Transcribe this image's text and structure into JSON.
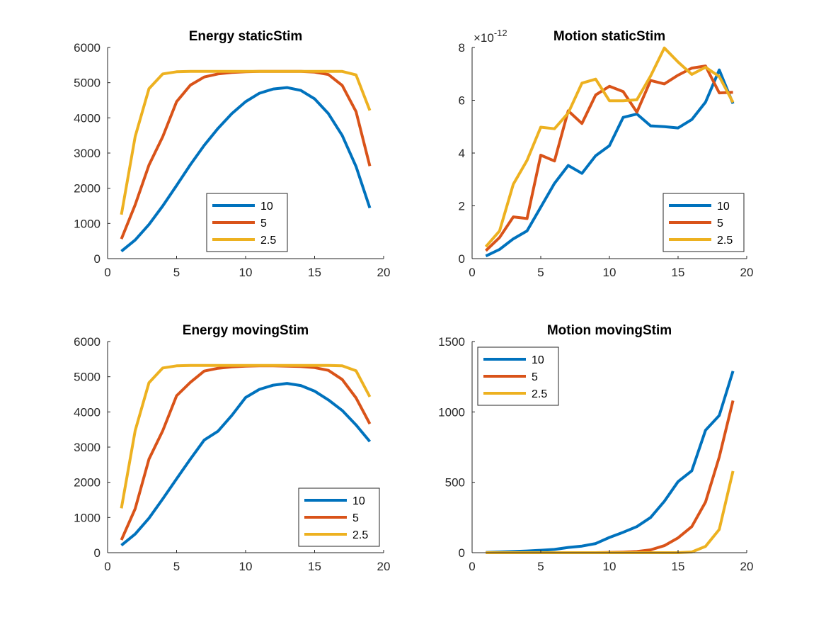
{
  "chart_data": [
    {
      "type": "line",
      "title": "Energy staticStim",
      "xlim": [
        0,
        20
      ],
      "ylim": [
        0,
        6000
      ],
      "xticks": [
        0,
        5,
        10,
        15,
        20
      ],
      "yticks": [
        0,
        1000,
        2000,
        3000,
        4000,
        5000,
        6000
      ],
      "legend_placement": "bottom-center",
      "series": [
        {
          "name": "10",
          "color": "#0072BD",
          "x": [
            1,
            2,
            3,
            4,
            5,
            6,
            7,
            8,
            9,
            10,
            11,
            12,
            13,
            14,
            15,
            16,
            17,
            18,
            19
          ],
          "y": [
            210,
            530,
            970,
            1500,
            2080,
            2670,
            3220,
            3700,
            4120,
            4460,
            4700,
            4820,
            4860,
            4780,
            4540,
            4120,
            3500,
            2620,
            1440
          ]
        },
        {
          "name": "5",
          "color": "#D95319",
          "x": [
            1,
            2,
            3,
            4,
            5,
            6,
            7,
            8,
            9,
            10,
            11,
            12,
            13,
            14,
            15,
            16,
            17,
            18,
            19
          ],
          "y": [
            560,
            1530,
            2660,
            3470,
            4460,
            4930,
            5160,
            5250,
            5290,
            5310,
            5320,
            5320,
            5320,
            5320,
            5300,
            5230,
            4920,
            4180,
            2630
          ]
        },
        {
          "name": "2.5",
          "color": "#EDB120",
          "x": [
            1,
            2,
            3,
            4,
            5,
            6,
            7,
            8,
            9,
            10,
            11,
            12,
            13,
            14,
            15,
            16,
            17,
            18,
            19
          ],
          "y": [
            1250,
            3470,
            4830,
            5250,
            5310,
            5320,
            5320,
            5320,
            5320,
            5320,
            5320,
            5320,
            5320,
            5320,
            5320,
            5320,
            5320,
            5220,
            4210
          ]
        }
      ]
    },
    {
      "type": "line",
      "title": "Motion staticStim",
      "y_exponent_base": "×10",
      "y_exponent_power": "-12",
      "xlim": [
        0,
        20
      ],
      "ylim": [
        0,
        8
      ],
      "xticks": [
        0,
        5,
        10,
        15,
        20
      ],
      "yticks": [
        0,
        2,
        4,
        6,
        8
      ],
      "legend_placement": "bottom-right",
      "series": [
        {
          "name": "10",
          "color": "#0072BD",
          "x": [
            1,
            2,
            3,
            4,
            5,
            6,
            7,
            8,
            9,
            10,
            11,
            12,
            13,
            14,
            15,
            16,
            17,
            18,
            19
          ],
          "y": [
            0.1,
            0.35,
            0.75,
            1.05,
            1.95,
            2.85,
            3.53,
            3.23,
            3.9,
            4.28,
            5.35,
            5.48,
            5.03,
            5.0,
            4.95,
            5.27,
            5.93,
            7.15,
            5.87
          ]
        },
        {
          "name": "5",
          "color": "#D95319",
          "x": [
            1,
            2,
            3,
            4,
            5,
            6,
            7,
            8,
            9,
            10,
            11,
            12,
            13,
            14,
            15,
            16,
            17,
            18,
            19
          ],
          "y": [
            0.3,
            0.8,
            1.58,
            1.52,
            3.92,
            3.7,
            5.6,
            5.12,
            6.2,
            6.53,
            6.33,
            5.55,
            6.75,
            6.62,
            6.95,
            7.22,
            7.3,
            6.28,
            6.3
          ]
        },
        {
          "name": "2.5",
          "color": "#EDB120",
          "x": [
            1,
            2,
            3,
            4,
            5,
            6,
            7,
            8,
            9,
            10,
            11,
            12,
            13,
            14,
            15,
            16,
            17,
            18,
            19
          ],
          "y": [
            0.45,
            1.05,
            2.82,
            3.72,
            4.98,
            4.92,
            5.52,
            6.65,
            6.8,
            5.98,
            5.98,
            6.02,
            6.92,
            7.98,
            7.45,
            6.98,
            7.25,
            6.9,
            5.92
          ]
        }
      ]
    },
    {
      "type": "line",
      "title": "Energy movingStim",
      "xlim": [
        0,
        20
      ],
      "ylim": [
        0,
        6000
      ],
      "xticks": [
        0,
        5,
        10,
        15,
        20
      ],
      "yticks": [
        0,
        1000,
        2000,
        3000,
        4000,
        5000,
        6000
      ],
      "legend_placement": "bottom-right",
      "series": [
        {
          "name": "10",
          "color": "#0072BD",
          "x": [
            1,
            2,
            3,
            4,
            5,
            6,
            7,
            8,
            9,
            10,
            11,
            12,
            13,
            14,
            15,
            16,
            17,
            18,
            19
          ],
          "y": [
            210,
            530,
            980,
            1530,
            2100,
            2660,
            3200,
            3450,
            3900,
            4410,
            4640,
            4760,
            4810,
            4750,
            4590,
            4340,
            4040,
            3630,
            3160
          ]
        },
        {
          "name": "5",
          "color": "#D95319",
          "x": [
            1,
            2,
            3,
            4,
            5,
            6,
            7,
            8,
            9,
            10,
            11,
            12,
            13,
            14,
            15,
            16,
            17,
            18,
            19
          ],
          "y": [
            360,
            1250,
            2660,
            3470,
            4460,
            4840,
            5160,
            5240,
            5280,
            5300,
            5310,
            5310,
            5300,
            5290,
            5260,
            5180,
            4920,
            4400,
            3660
          ]
        },
        {
          "name": "2.5",
          "color": "#EDB120",
          "x": [
            1,
            2,
            3,
            4,
            5,
            6,
            7,
            8,
            9,
            10,
            11,
            12,
            13,
            14,
            15,
            16,
            17,
            18,
            19
          ],
          "y": [
            1260,
            3470,
            4830,
            5250,
            5310,
            5320,
            5320,
            5320,
            5320,
            5320,
            5320,
            5320,
            5320,
            5320,
            5320,
            5320,
            5310,
            5170,
            4430
          ]
        }
      ]
    },
    {
      "type": "line",
      "title": "Motion movingStim",
      "xlim": [
        0,
        20
      ],
      "ylim": [
        0,
        1500
      ],
      "xticks": [
        0,
        5,
        10,
        15,
        20
      ],
      "yticks": [
        0,
        500,
        1000,
        1500
      ],
      "legend_placement": "top-left",
      "series": [
        {
          "name": "10",
          "color": "#0072BD",
          "x": [
            1,
            2,
            3,
            4,
            5,
            6,
            7,
            8,
            9,
            10,
            11,
            12,
            13,
            14,
            15,
            16,
            17,
            18,
            19
          ],
          "y": [
            2,
            5,
            8,
            12,
            17,
            23,
            37,
            47,
            65,
            108,
            145,
            185,
            250,
            365,
            505,
            582,
            870,
            975,
            1290
          ]
        },
        {
          "name": "5",
          "color": "#D95319",
          "x": [
            1,
            2,
            3,
            4,
            5,
            6,
            7,
            8,
            9,
            10,
            11,
            12,
            13,
            14,
            15,
            16,
            17,
            18,
            19
          ],
          "y": [
            0,
            0,
            0,
            0,
            0,
            0,
            0,
            0,
            0,
            2,
            4,
            8,
            20,
            50,
            105,
            185,
            360,
            680,
            1080
          ]
        },
        {
          "name": "2.5",
          "color": "#EDB120",
          "x": [
            1,
            2,
            3,
            4,
            5,
            6,
            7,
            8,
            9,
            10,
            11,
            12,
            13,
            14,
            15,
            16,
            17,
            18,
            19
          ],
          "y": [
            0,
            0,
            0,
            0,
            0,
            0,
            0,
            0,
            0,
            0,
            0,
            0,
            0,
            0,
            0,
            5,
            45,
            165,
            580
          ]
        }
      ]
    }
  ]
}
